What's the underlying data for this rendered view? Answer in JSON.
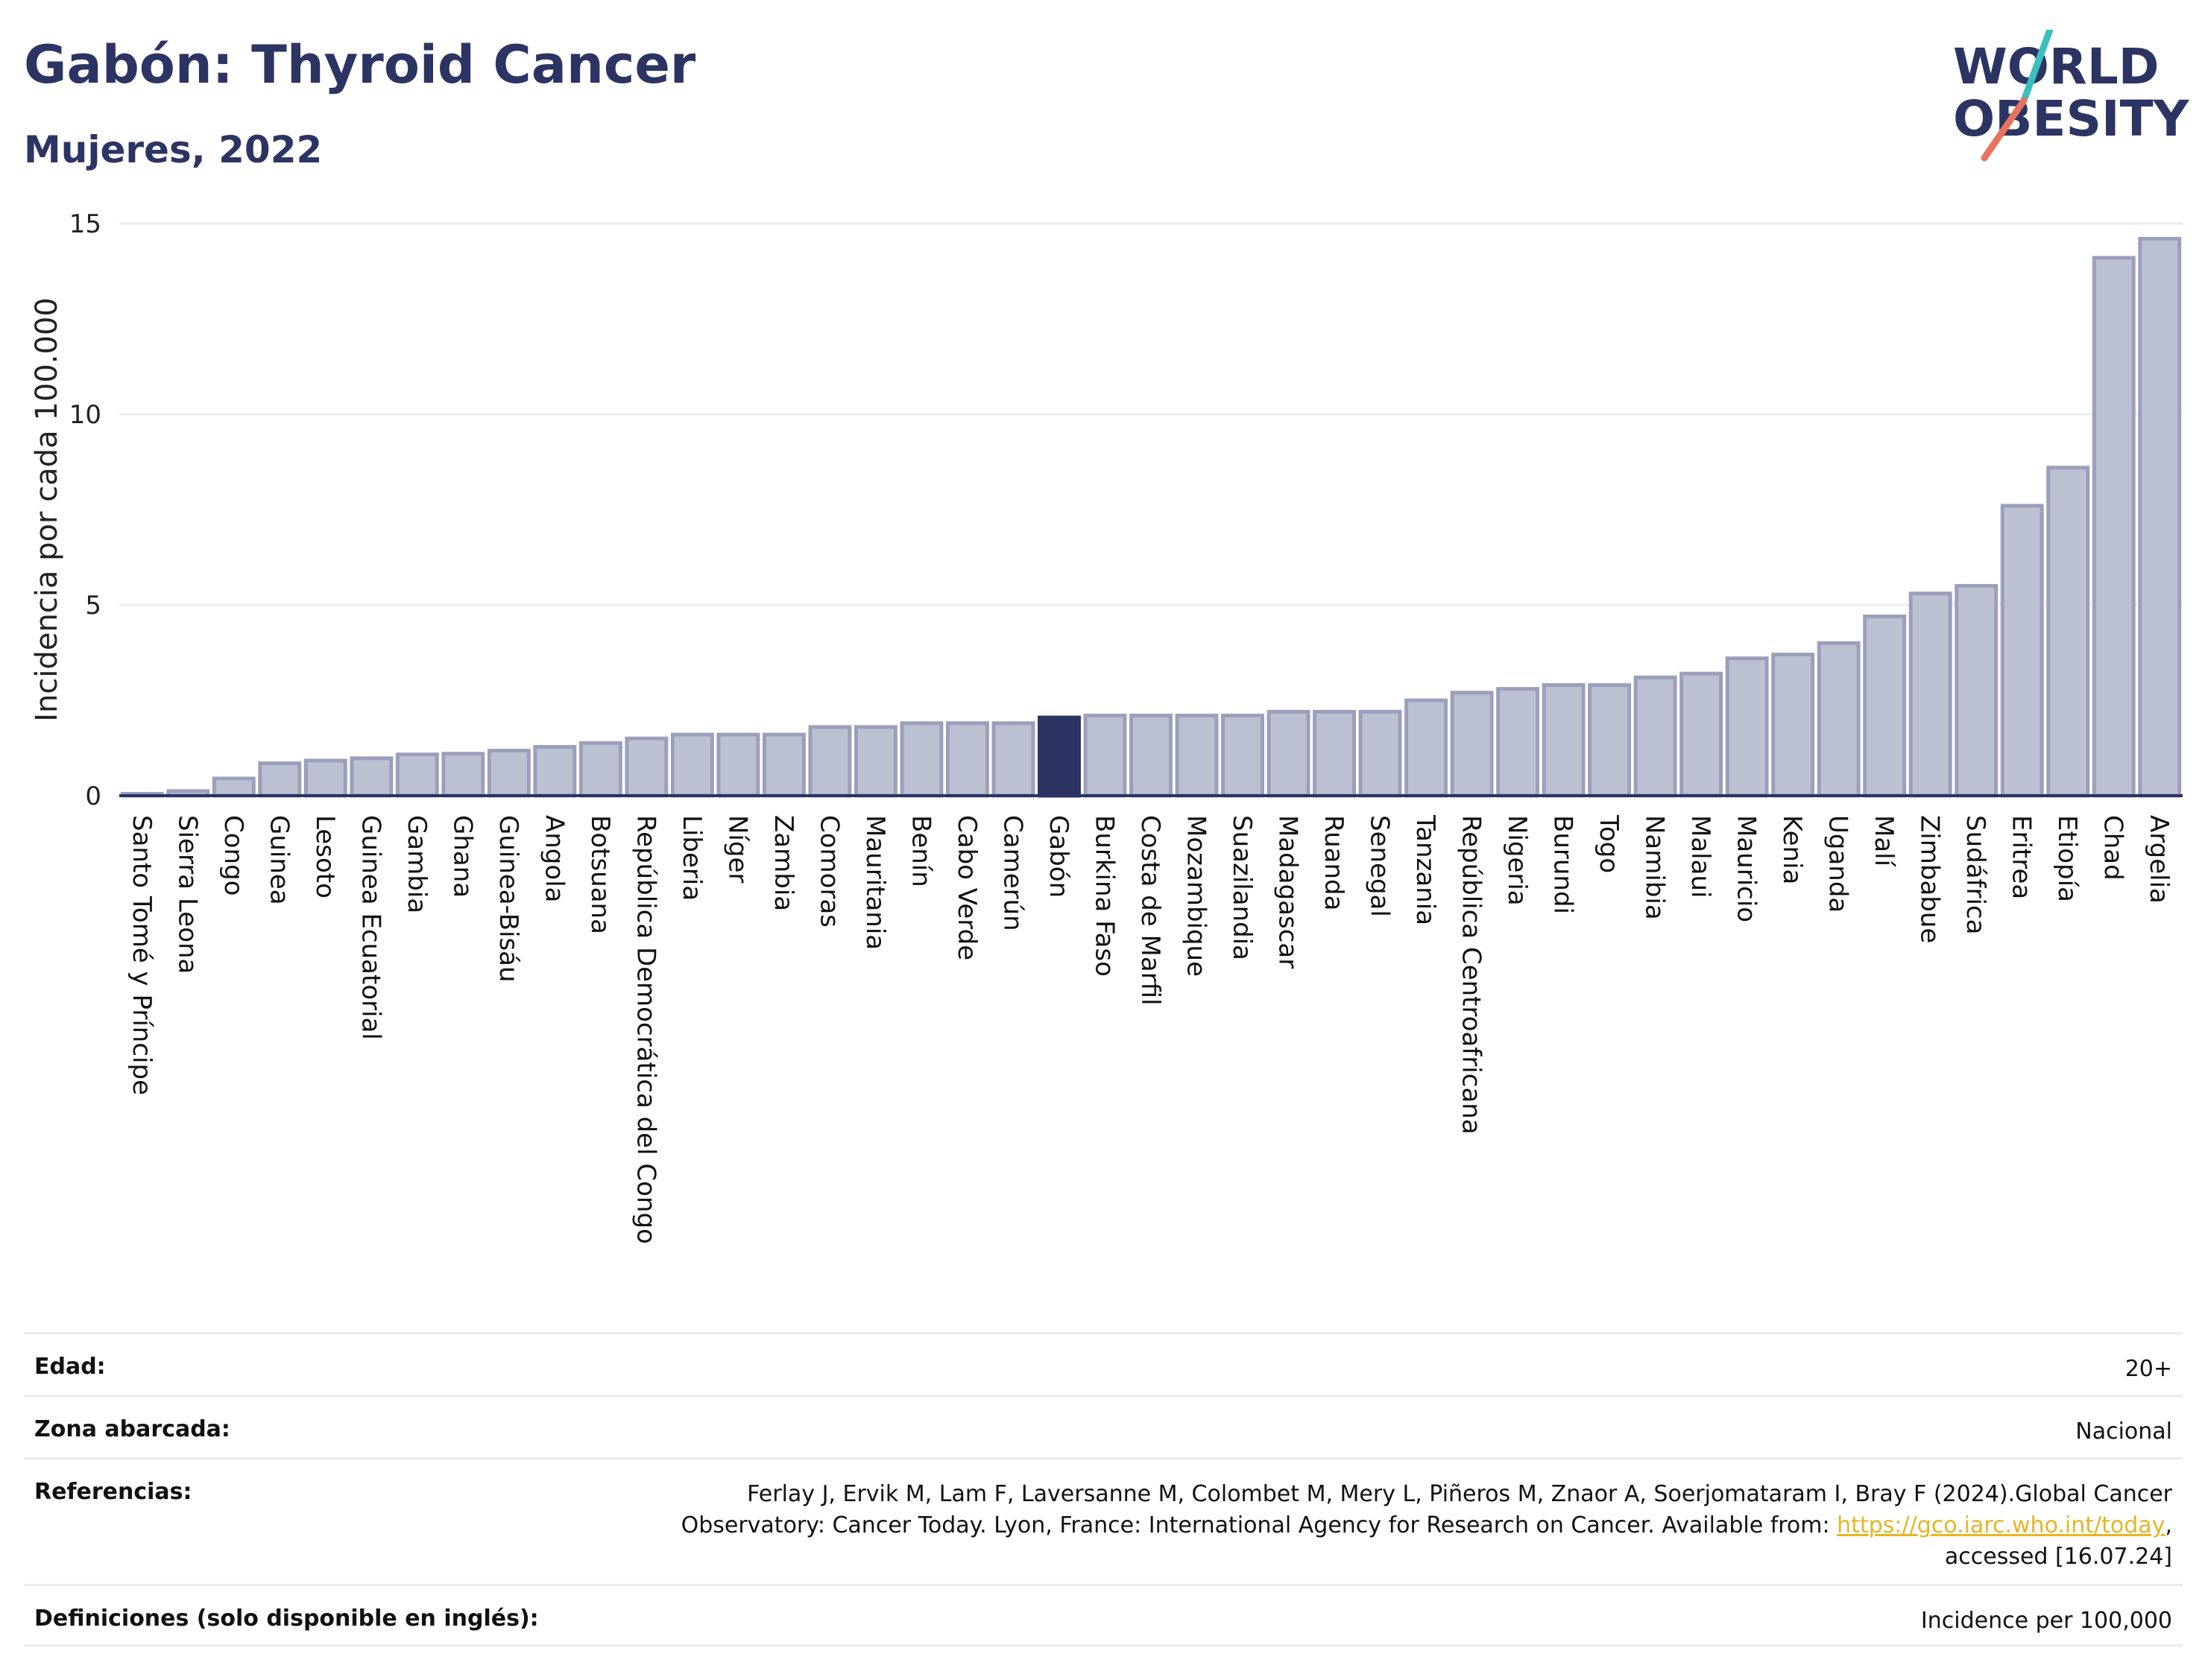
{
  "header": {
    "title": "Gabón: Thyroid Cancer",
    "subtitle": "Mujeres, 2022"
  },
  "logo": {
    "line1": "WORLD",
    "line2": "OBESITY",
    "colors": {
      "text": "#2b3463",
      "slash_teal": "#3bbfbf",
      "slash_coral": "#e8735f"
    }
  },
  "chart_data": {
    "type": "bar",
    "ylabel": "Incidencia por cada 100.000",
    "xlabel": "",
    "ylim": [
      0,
      15
    ],
    "yticks": [
      0,
      5,
      10,
      15
    ],
    "highlight": "Gabón",
    "colors": {
      "bar": "#bcc1d1",
      "bar_border": "#9aa0bb",
      "highlight": "#2b3463",
      "grid": "#e8edf2"
    },
    "categories": [
      "Santo Tomé y Príncipe",
      "Sierra Leona",
      "Congo",
      "Guinea",
      "Lesoto",
      "Guinea Ecuatorial",
      "Gambia",
      "Ghana",
      "Guinea-Bisáu",
      "Angola",
      "Botsuana",
      "República Democrática del Congo",
      "Liberia",
      "Níger",
      "Zambia",
      "Comoras",
      "Mauritania",
      "Benín",
      "Cabo Verde",
      "Camerún",
      "Gabón",
      "Burkina Faso",
      "Costa de Marfil",
      "Mozambique",
      "Suazilandia",
      "Madagascar",
      "Ruanda",
      "Senegal",
      "Tanzania",
      "República Centroafricana",
      "Nigeria",
      "Burundi",
      "Togo",
      "Namibia",
      "Malaui",
      "Mauricio",
      "Kenia",
      "Uganda",
      "Malí",
      "Zimbabue",
      "Sudáfrica",
      "Eritrea",
      "Etiopía",
      "Chad",
      "Argelia"
    ],
    "values": [
      0.05,
      0.12,
      0.45,
      0.85,
      0.92,
      0.98,
      1.08,
      1.1,
      1.18,
      1.28,
      1.38,
      1.5,
      1.6,
      1.6,
      1.6,
      1.8,
      1.8,
      1.9,
      1.9,
      1.9,
      2.05,
      2.1,
      2.1,
      2.1,
      2.1,
      2.2,
      2.2,
      2.2,
      2.5,
      2.7,
      2.8,
      2.9,
      2.9,
      3.1,
      3.2,
      3.6,
      3.7,
      4.0,
      4.7,
      5.3,
      5.5,
      7.6,
      8.6,
      14.1,
      14.6
    ]
  },
  "meta": [
    {
      "label": "Edad:",
      "value": "20+"
    },
    {
      "label": "Zona abarcada:",
      "value": "Nacional"
    },
    {
      "label": "Referencias:",
      "value_pre": "Ferlay J, Ervik M, Lam F, Laversanne M, Colombet M, Mery L, Piñeros M, Znaor A, Soerjomataram I, Bray F (2024).Global Cancer Observatory: Cancer Today. Lyon, France: International Agency for Research on Cancer. Available from: ",
      "link": "https://gco.iarc.who.int/today",
      "value_post": ", accessed [16.07.24]"
    },
    {
      "label": "Definiciones (solo disponible en inglés):",
      "value": "Incidence per 100,000"
    }
  ]
}
